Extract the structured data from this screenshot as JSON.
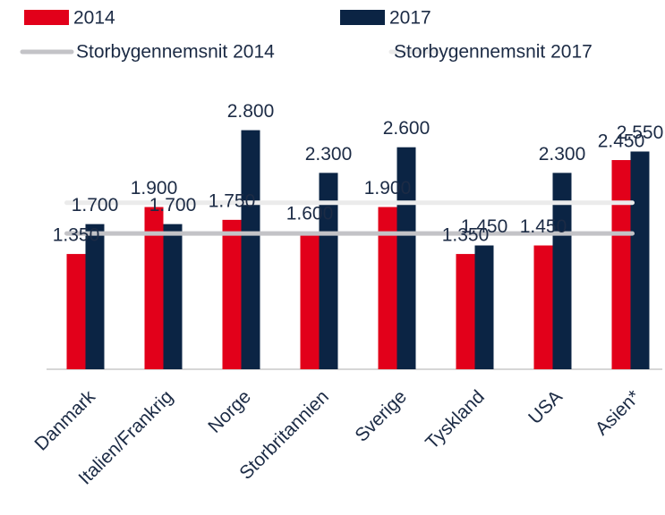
{
  "chart_data": {
    "type": "bar",
    "categories": [
      "Danmark",
      "Italien/Frankrig",
      "Norge",
      "Storbritannien",
      "Sverige",
      "Tyskland",
      "USA",
      "Asien*"
    ],
    "series": [
      {
        "name": "2014",
        "color": "#e2001a",
        "values": [
          1350,
          1900,
          1750,
          1600,
          1900,
          1350,
          1450,
          2450
        ],
        "value_labels": [
          "1.350",
          "1.900",
          "1.750",
          "1.600",
          "1.900",
          "1.350",
          "1.450",
          "2.450"
        ]
      },
      {
        "name": "2017",
        "color": "#0b2444",
        "values": [
          1700,
          1700,
          2800,
          2300,
          2600,
          1450,
          2300,
          2550
        ],
        "value_labels": [
          "1.700",
          "1.700",
          "2.800",
          "2.300",
          "2.600",
          "1.450",
          "2.300",
          "2.550"
        ]
      }
    ],
    "averages": [
      {
        "name": "Storbygennemsnit 2014",
        "color": "#c3c3c7",
        "value": 1590
      },
      {
        "name": "Storbygennemsnit 2017",
        "color": "#ebebeb",
        "value": 1950
      }
    ],
    "ylim": [
      0,
      3000
    ]
  }
}
